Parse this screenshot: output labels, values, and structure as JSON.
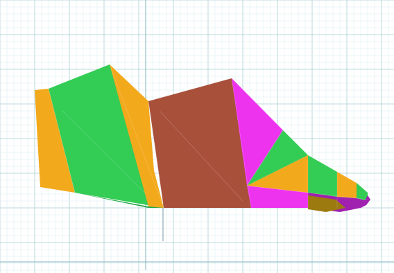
{
  "viewport": {
    "background": "#ffffff",
    "grid_minor_color": "#d8ecee",
    "grid_major_color": "#a9cdd3",
    "axis_color": "#7fb3bd"
  },
  "model": {
    "colors": {
      "orange": "#f3a91c",
      "orange_dark": "#cf8a12",
      "green": "#33cc55",
      "green_dark": "#22a844",
      "brown": "#a8503a",
      "brown_dark": "#8c3e2c",
      "magenta": "#ee33ee",
      "purple": "#a020b0",
      "olive": "#9c7a10"
    }
  }
}
